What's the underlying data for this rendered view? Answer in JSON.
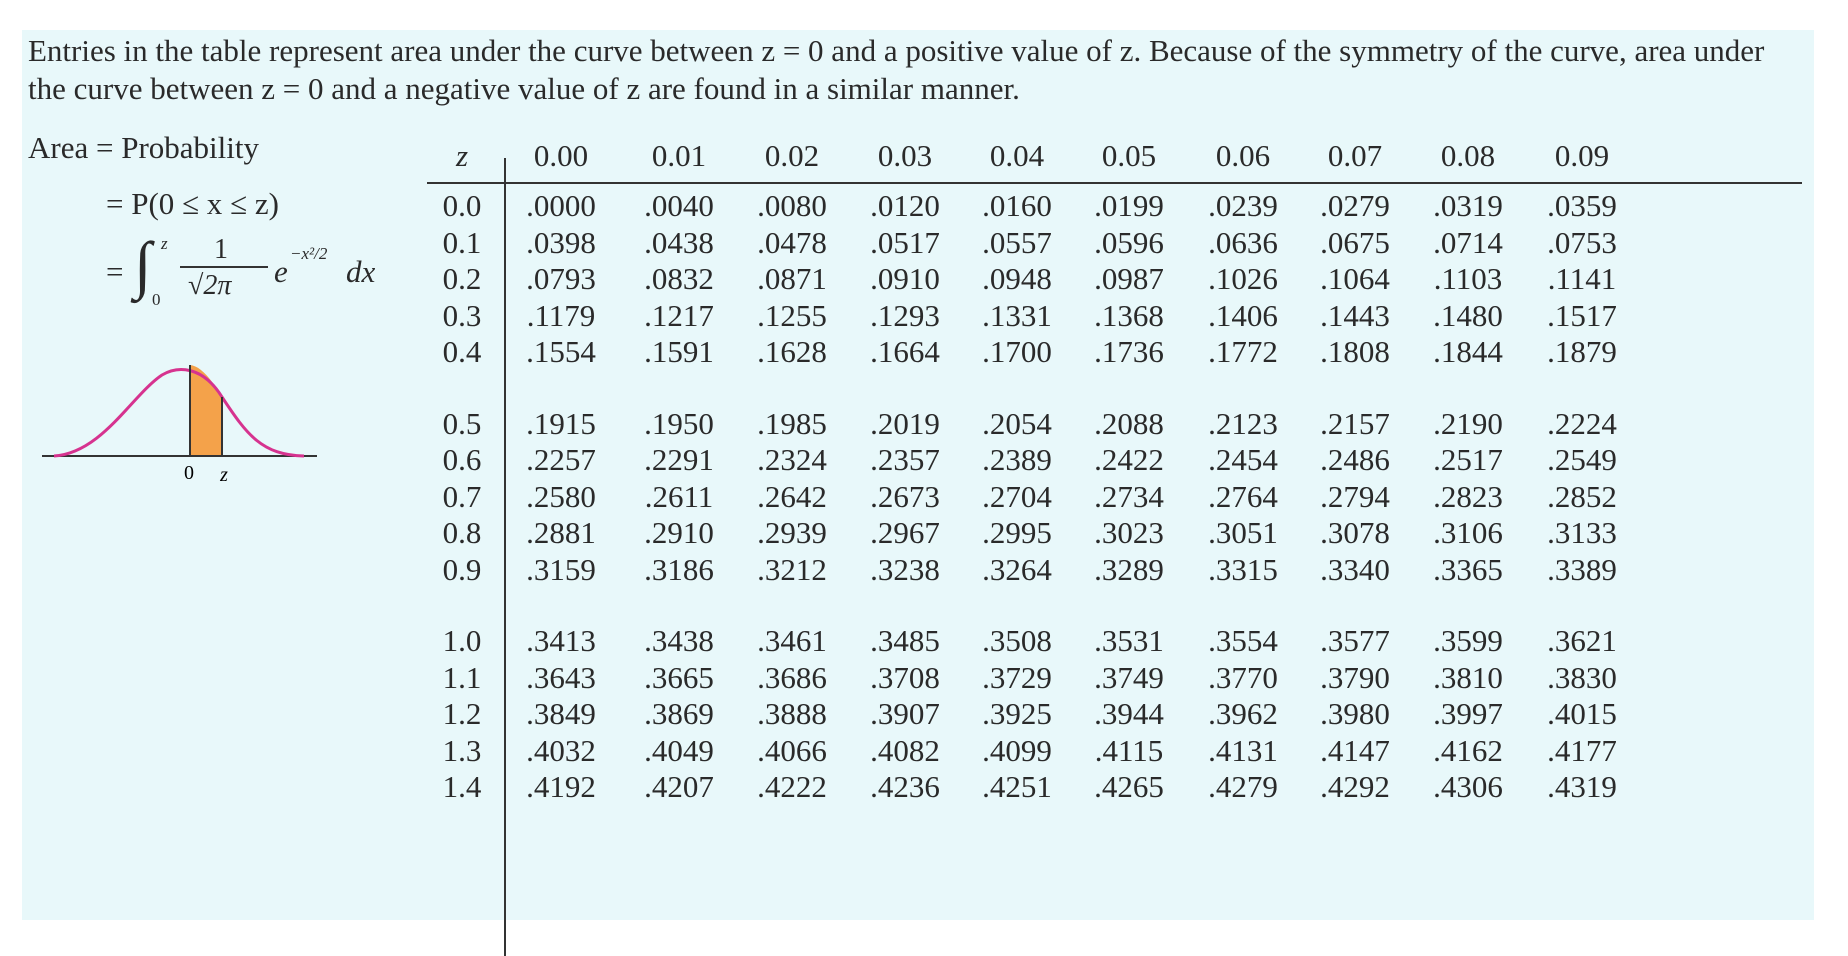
{
  "intro": "Entries in the table represent area under the curve between z = 0 and a positive value of z. Because of the symmetry of the curve, area under the curve between z = 0 and a negative value of z are found in a similar manner.",
  "formula": {
    "line1": "Area = Probability",
    "line2": "= P(0 ≤ x ≤ z)",
    "eq_sign": "=",
    "int_upper": "z",
    "int_lower": "0",
    "numerator": "1",
    "denominator": "√2π",
    "exponent_term": "e",
    "exponent": "−x²/2",
    "differential": "dx"
  },
  "diagram": {
    "zero_label": "0",
    "z_label": "z",
    "curve_color": "#d6338f",
    "fill_color": "#f4a24a"
  },
  "table": {
    "header_label": "z",
    "columns": [
      "0.00",
      "0.01",
      "0.02",
      "0.03",
      "0.04",
      "0.05",
      "0.06",
      "0.07",
      "0.08",
      "0.09"
    ],
    "rows": [
      {
        "z": "0.0",
        "values": [
          ".0000",
          ".0040",
          ".0080",
          ".0120",
          ".0160",
          ".0199",
          ".0239",
          ".0279",
          ".0319",
          ".0359"
        ]
      },
      {
        "z": "0.1",
        "values": [
          ".0398",
          ".0438",
          ".0478",
          ".0517",
          ".0557",
          ".0596",
          ".0636",
          ".0675",
          ".0714",
          ".0753"
        ]
      },
      {
        "z": "0.2",
        "values": [
          ".0793",
          ".0832",
          ".0871",
          ".0910",
          ".0948",
          ".0987",
          ".1026",
          ".1064",
          ".1103",
          ".1141"
        ]
      },
      {
        "z": "0.3",
        "values": [
          ".1179",
          ".1217",
          ".1255",
          ".1293",
          ".1331",
          ".1368",
          ".1406",
          ".1443",
          ".1480",
          ".1517"
        ]
      },
      {
        "z": "0.4",
        "values": [
          ".1554",
          ".1591",
          ".1628",
          ".1664",
          ".1700",
          ".1736",
          ".1772",
          ".1808",
          ".1844",
          ".1879"
        ]
      },
      {
        "z": "0.5",
        "values": [
          ".1915",
          ".1950",
          ".1985",
          ".2019",
          ".2054",
          ".2088",
          ".2123",
          ".2157",
          ".2190",
          ".2224"
        ]
      },
      {
        "z": "0.6",
        "values": [
          ".2257",
          ".2291",
          ".2324",
          ".2357",
          ".2389",
          ".2422",
          ".2454",
          ".2486",
          ".2517",
          ".2549"
        ]
      },
      {
        "z": "0.7",
        "values": [
          ".2580",
          ".2611",
          ".2642",
          ".2673",
          ".2704",
          ".2734",
          ".2764",
          ".2794",
          ".2823",
          ".2852"
        ]
      },
      {
        "z": "0.8",
        "values": [
          ".2881",
          ".2910",
          ".2939",
          ".2967",
          ".2995",
          ".3023",
          ".3051",
          ".3078",
          ".3106",
          ".3133"
        ]
      },
      {
        "z": "0.9",
        "values": [
          ".3159",
          ".3186",
          ".3212",
          ".3238",
          ".3264",
          ".3289",
          ".3315",
          ".3340",
          ".3365",
          ".3389"
        ]
      },
      {
        "z": "1.0",
        "values": [
          ".3413",
          ".3438",
          ".3461",
          ".3485",
          ".3508",
          ".3531",
          ".3554",
          ".3577",
          ".3599",
          ".3621"
        ]
      },
      {
        "z": "1.1",
        "values": [
          ".3643",
          ".3665",
          ".3686",
          ".3708",
          ".3729",
          ".3749",
          ".3770",
          ".3790",
          ".3810",
          ".3830"
        ]
      },
      {
        "z": "1.2",
        "values": [
          ".3849",
          ".3869",
          ".3888",
          ".3907",
          ".3925",
          ".3944",
          ".3962",
          ".3980",
          ".3997",
          ".4015"
        ]
      },
      {
        "z": "1.3",
        "values": [
          ".4032",
          ".4049",
          ".4066",
          ".4082",
          ".4099",
          ".4115",
          ".4131",
          ".4147",
          ".4162",
          ".4177"
        ]
      },
      {
        "z": "1.4",
        "values": [
          ".4192",
          ".4207",
          ".4222",
          ".4236",
          ".4251",
          ".4265",
          ".4279",
          ".4292",
          ".4306",
          ".4319"
        ]
      }
    ]
  }
}
